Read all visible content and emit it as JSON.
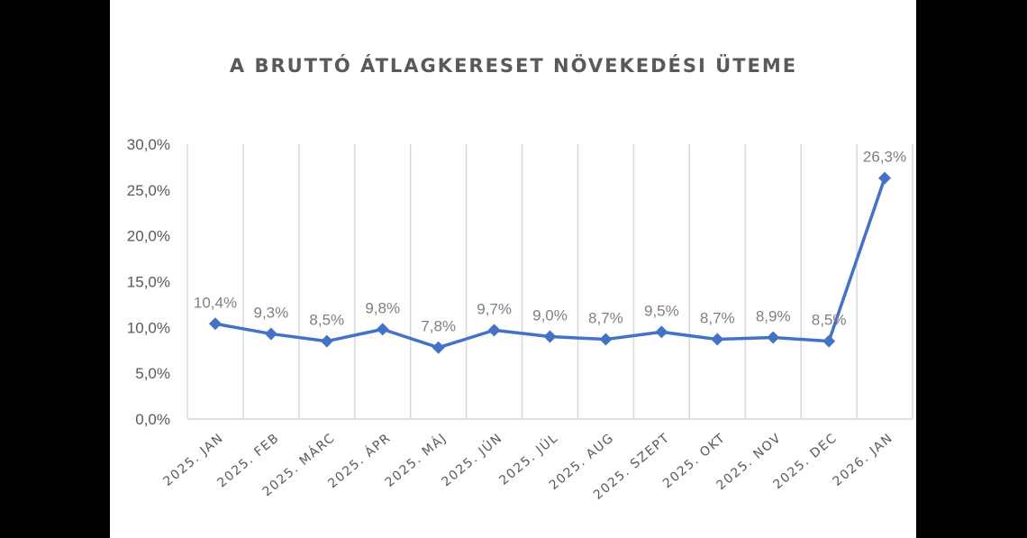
{
  "chart_data": {
    "type": "line",
    "title": "A BRUTTÓ ÁTLAGKERESET NÖVEKEDÉSI ÜTEME",
    "xlabel": "",
    "ylabel": "",
    "categories": [
      "2025. JAN",
      "2025. FEB",
      "2025. MÁRC",
      "2025. ÁPR",
      "2025. MÁJ",
      "2025. JÚN",
      "2025. JÚL",
      "2025. AUG",
      "2025. SZEPT",
      "2025. OKT",
      "2025. NOV",
      "2025. DEC",
      "2026. JAN"
    ],
    "values": [
      10.4,
      9.3,
      8.5,
      9.8,
      7.8,
      9.7,
      9.0,
      8.7,
      9.5,
      8.7,
      8.9,
      8.5,
      26.3
    ],
    "data_labels": [
      "10,4%",
      "9,3%",
      "8,5%",
      "9,8%",
      "7,8%",
      "9,7%",
      "9,0%",
      "8,7%",
      "9,5%",
      "8,7%",
      "8,9%",
      "8,5%",
      "26,3%"
    ],
    "ylim": [
      0,
      30
    ],
    "yticks": [
      0,
      5,
      10,
      15,
      20,
      25,
      30
    ],
    "ytick_labels": [
      "0,0%",
      "5,0%",
      "10,0%",
      "15,0%",
      "20,0%",
      "25,0%",
      "30,0%"
    ],
    "grid": "vertical",
    "legend": "none",
    "colors": {
      "line": "#4472C4",
      "grid": "#d9d9d9",
      "text": "#595959",
      "label": "#7f7f7f"
    }
  }
}
